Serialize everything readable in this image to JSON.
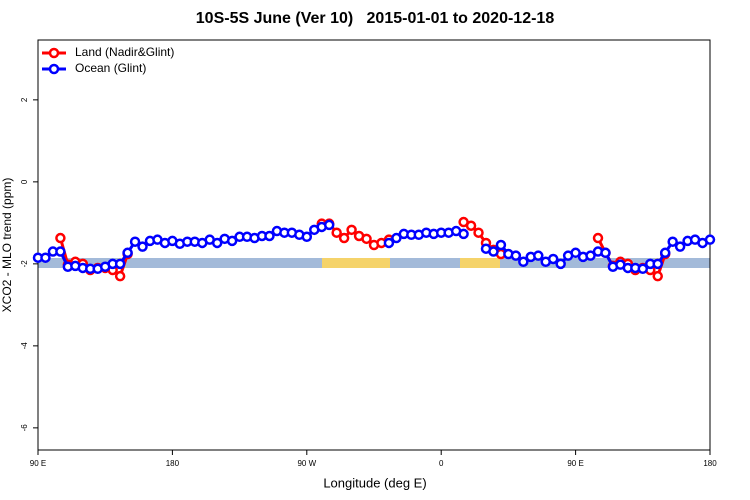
{
  "chart_data": {
    "type": "line",
    "title": "10S-5S June (Ver 10)   2015-01-01 to 2020-12-18",
    "xlabel": "Longitude (deg E)",
    "ylabel": "XCO2 - MLO trend (ppm)",
    "x": [
      90,
      95,
      100,
      105,
      110,
      115,
      120,
      125,
      130,
      135,
      140,
      145,
      150,
      155,
      160,
      165,
      170,
      175,
      180,
      185,
      190,
      195,
      200,
      205,
      210,
      215,
      220,
      225,
      230,
      235,
      240,
      245,
      250,
      255,
      260,
      265,
      270,
      275,
      280,
      285,
      290,
      295,
      300,
      305,
      310,
      315,
      320,
      325,
      330,
      335,
      340,
      345,
      350,
      355,
      360,
      365,
      370,
      375,
      380,
      385,
      390,
      395,
      400,
      405,
      410,
      415,
      420,
      425,
      430,
      435,
      440,
      445,
      450,
      455,
      460,
      465,
      470,
      475,
      480,
      485,
      490,
      495,
      500,
      505,
      510,
      515,
      520,
      525,
      530,
      535,
      540
    ],
    "series": [
      {
        "name": "Land (Nadir&Glint)",
        "color": "#ff0000",
        "values": [
          null,
          null,
          null,
          -1.37,
          -2.02,
          -1.95,
          -2.0,
          -2.15,
          -2.1,
          -2.1,
          -2.15,
          -2.3,
          -1.76,
          null,
          null,
          null,
          null,
          null,
          null,
          null,
          null,
          null,
          null,
          null,
          null,
          null,
          null,
          null,
          null,
          null,
          null,
          null,
          null,
          null,
          null,
          null,
          null,
          null,
          -1.02,
          -1.02,
          -1.24,
          -1.37,
          -1.17,
          -1.32,
          -1.39,
          -1.54,
          -1.49,
          -1.41,
          null,
          null,
          null,
          null,
          null,
          null,
          null,
          null,
          null,
          -0.98,
          -1.07,
          -1.24,
          -1.49,
          -1.66,
          -1.76,
          null,
          null,
          null,
          null,
          null,
          null,
          null,
          null,
          null,
          null,
          null,
          null,
          -1.37,
          -1.73,
          -2.05,
          -1.95,
          -2.0,
          -2.15,
          -2.1,
          -2.15,
          -2.3,
          -1.76,
          null,
          null,
          null,
          null,
          null,
          null
        ]
      },
      {
        "name": "Ocean (Glint)",
        "color": "#0000ff",
        "values": [
          -1.85,
          -1.85,
          -1.7,
          -1.7,
          -2.07,
          -2.05,
          -2.1,
          -2.12,
          -2.12,
          -2.07,
          -2.0,
          -2.0,
          -1.73,
          -1.46,
          -1.58,
          -1.44,
          -1.41,
          -1.49,
          -1.44,
          -1.51,
          -1.46,
          -1.46,
          -1.49,
          -1.41,
          -1.49,
          -1.39,
          -1.44,
          -1.34,
          -1.34,
          -1.37,
          -1.32,
          -1.32,
          -1.2,
          -1.24,
          -1.24,
          -1.29,
          -1.34,
          -1.17,
          -1.1,
          -1.05,
          null,
          null,
          null,
          null,
          null,
          null,
          null,
          -1.49,
          -1.37,
          -1.27,
          -1.29,
          -1.29,
          -1.24,
          -1.27,
          -1.24,
          -1.24,
          -1.2,
          -1.27,
          null,
          null,
          -1.63,
          -1.7,
          -1.54,
          -1.76,
          -1.8,
          -1.95,
          -1.83,
          -1.8,
          -1.95,
          -1.88,
          -2.0,
          -1.8,
          -1.73,
          -1.83,
          -1.8,
          -1.7,
          -1.73,
          -2.07,
          -2.02,
          -2.1,
          -2.1,
          -2.12,
          -2.0,
          -2.0,
          -1.73,
          -1.46,
          -1.58,
          -1.44,
          -1.41,
          -1.49,
          -1.41
        ]
      }
    ],
    "xlim": [
      90,
      540
    ],
    "xticks": [
      {
        "value": 90,
        "label": "90 E"
      },
      180,
      {
        "value": 270,
        "label": "90 W"
      },
      {
        "value": 360,
        "label": "0"
      },
      {
        "value": 450,
        "label": "90 E"
      },
      {
        "value": 540,
        "label": "180"
      }
    ],
    "ylim": [
      -6.54,
      3.46
    ],
    "yticks": [
      -6,
      -4,
      -2,
      0,
      2
    ],
    "legend": "top-left"
  }
}
